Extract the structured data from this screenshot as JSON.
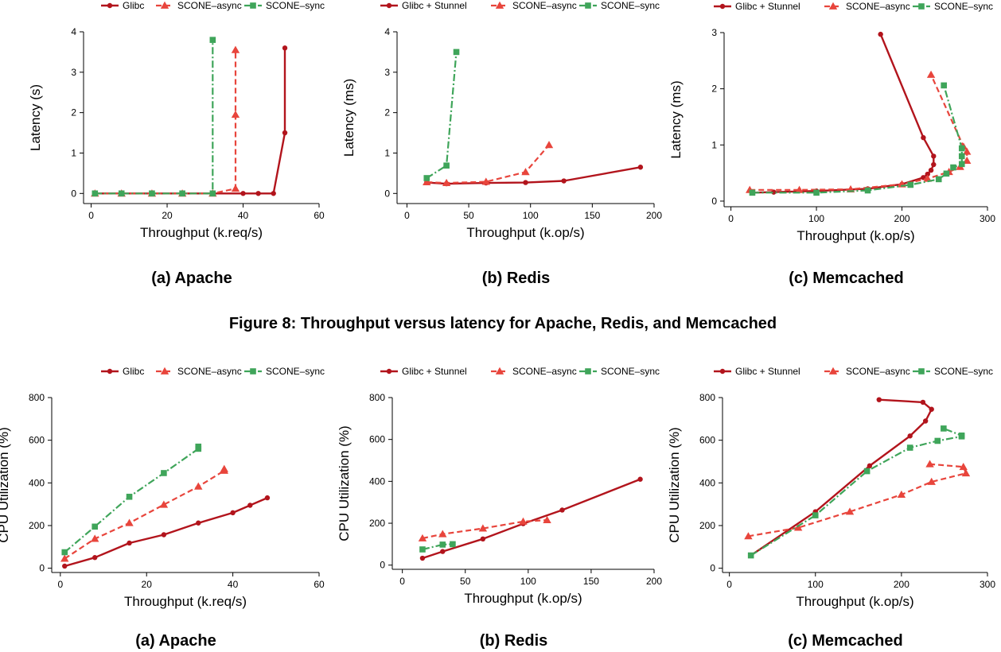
{
  "colors": {
    "glibc": "#b2141c",
    "async": "#e8453c",
    "sync": "#3fa55a",
    "axis": "#000000"
  },
  "figure_caption": "Figure 8: Throughput versus latency for Apache, Redis, and Memcached",
  "chart_data": [
    {
      "type": "line",
      "subcaption": "(a) Apache",
      "xlabel": "Throughput (k.req/s)",
      "ylabel": "Latency (s)",
      "xlim": [
        -2,
        60
      ],
      "ylim": [
        -0.25,
        4.0
      ],
      "xticks": [
        0,
        20,
        40,
        60
      ],
      "yticks": [
        0,
        1,
        2,
        3,
        4
      ],
      "series": [
        {
          "name": "Glibc",
          "style": "glibc",
          "x": [
            1,
            8,
            16,
            24,
            32,
            40,
            44,
            48,
            51,
            51
          ],
          "y": [
            0,
            0,
            0,
            0,
            0,
            0,
            0,
            0,
            1.5,
            3.6
          ]
        },
        {
          "name": "SCONE–async",
          "style": "async",
          "x": [
            1,
            8,
            16,
            24,
            32,
            38,
            38,
            38
          ],
          "y": [
            0,
            0,
            0,
            0,
            0,
            0.12,
            1.95,
            3.55
          ]
        },
        {
          "name": "SCONE–sync",
          "style": "sync",
          "x": [
            1,
            8,
            16,
            24,
            32,
            32
          ],
          "y": [
            0,
            0,
            0,
            0,
            0,
            3.8
          ]
        }
      ]
    },
    {
      "type": "line",
      "subcaption": "(b) Redis",
      "xlabel": "Throughput (k.op/s)",
      "ylabel": "Latency (ms)",
      "xlim": [
        -8,
        200
      ],
      "ylim": [
        -0.25,
        4.0
      ],
      "xticks": [
        0,
        50,
        100,
        150,
        200
      ],
      "yticks": [
        0,
        1,
        2,
        3,
        4
      ],
      "series": [
        {
          "name": "Glibc + Stunnel",
          "style": "glibc",
          "x": [
            16,
            32,
            64,
            96,
            127,
            189
          ],
          "y": [
            0.27,
            0.24,
            0.26,
            0.27,
            0.31,
            0.65
          ]
        },
        {
          "name": "SCONE–async",
          "style": "async",
          "x": [
            16,
            32,
            64,
            96,
            115
          ],
          "y": [
            0.28,
            0.26,
            0.29,
            0.53,
            1.2
          ]
        },
        {
          "name": "SCONE–sync",
          "style": "sync",
          "x": [
            16,
            32,
            40
          ],
          "y": [
            0.38,
            0.69,
            3.5
          ]
        }
      ]
    },
    {
      "type": "line",
      "subcaption": "(c) Memcached",
      "xlabel": "Throughput (k.op/s)",
      "ylabel": "Latency (ms)",
      "xlim": [
        -8,
        300
      ],
      "ylim": [
        -0.1,
        3.0
      ],
      "xticks": [
        0,
        100,
        200,
        300
      ],
      "yticks": [
        0,
        1,
        2,
        3
      ],
      "series": [
        {
          "name": "Glibc + Stunnel",
          "style": "glibc",
          "x": [
            175,
            225,
            237,
            237,
            234,
            230,
            225,
            200,
            160,
            100,
            50,
            25
          ],
          "y": [
            2.97,
            1.13,
            0.8,
            0.65,
            0.55,
            0.48,
            0.42,
            0.3,
            0.22,
            0.18,
            0.16,
            0.15
          ]
        },
        {
          "name": "SCONE–async",
          "style": "async",
          "x": [
            22,
            80,
            140,
            200,
            230,
            255,
            268,
            276,
            276,
            272,
            234
          ],
          "y": [
            0.2,
            0.2,
            0.21,
            0.3,
            0.4,
            0.52,
            0.61,
            0.72,
            0.88,
            0.97,
            2.25
          ]
        },
        {
          "name": "SCONE–sync",
          "style": "sync",
          "x": [
            25,
            100,
            160,
            210,
            243,
            252,
            260,
            270,
            270,
            270,
            249
          ],
          "y": [
            0.15,
            0.15,
            0.19,
            0.29,
            0.39,
            0.49,
            0.6,
            0.66,
            0.8,
            0.94,
            2.06
          ]
        }
      ]
    },
    {
      "type": "line",
      "subcaption": "(a) Apache",
      "xlabel": "Throughput (k.req/s)",
      "ylabel": "CPU Utilization (%)",
      "xlim": [
        -2,
        60
      ],
      "ylim": [
        -20,
        800
      ],
      "xticks": [
        0,
        20,
        40,
        60
      ],
      "yticks": [
        0,
        200,
        400,
        600,
        800
      ],
      "series": [
        {
          "name": "Glibc",
          "style": "glibc",
          "x": [
            1,
            8,
            16,
            24,
            32,
            40,
            44,
            48
          ],
          "y": [
            10,
            50,
            118,
            157,
            212,
            260,
            295,
            330
          ]
        },
        {
          "name": "SCONE–async",
          "style": "async",
          "x": [
            1,
            8,
            16,
            24,
            32,
            38,
            38
          ],
          "y": [
            45,
            138,
            212,
            298,
            383,
            457,
            465
          ]
        },
        {
          "name": "SCONE–sync",
          "style": "sync",
          "x": [
            1,
            8,
            16,
            24,
            32,
            32
          ],
          "y": [
            75,
            195,
            335,
            446,
            560,
            570
          ]
        }
      ]
    },
    {
      "type": "line",
      "subcaption": "(b) Redis",
      "xlabel": "Throughput (k.op/s)",
      "ylabel": "CPU Utilization (%)",
      "xlim": [
        -8,
        200
      ],
      "ylim": [
        -20,
        800
      ],
      "xticks": [
        0,
        50,
        100,
        150,
        200
      ],
      "yticks": [
        0,
        200,
        400,
        600,
        800
      ],
      "series": [
        {
          "name": "Glibc + Stunnel",
          "style": "glibc",
          "x": [
            16,
            32,
            64,
            96,
            127,
            189
          ],
          "y": [
            33,
            65,
            125,
            198,
            263,
            410
          ]
        },
        {
          "name": "SCONE–async",
          "style": "async",
          "x": [
            16,
            32,
            64,
            96,
            115
          ],
          "y": [
            128,
            148,
            175,
            208,
            215
          ]
        },
        {
          "name": "SCONE–sync",
          "style": "sync",
          "x": [
            16,
            32,
            40
          ],
          "y": [
            75,
            98,
            100
          ]
        }
      ]
    },
    {
      "type": "line",
      "subcaption": "(c) Memcached",
      "xlabel": "Throughput (k.op/s)",
      "ylabel": "CPU Utilization (%)",
      "xlim": [
        -8,
        300
      ],
      "ylim": [
        -20,
        800
      ],
      "xticks": [
        0,
        100,
        200,
        300
      ],
      "yticks": [
        0,
        200,
        400,
        600,
        800
      ],
      "series": [
        {
          "name": "Glibc + Stunnel",
          "style": "glibc",
          "x": [
            25,
            100,
            163,
            210,
            228,
            235,
            225,
            174
          ],
          "y": [
            60,
            265,
            480,
            620,
            690,
            745,
            778,
            790
          ]
        },
        {
          "name": "SCONE–async",
          "style": "async",
          "x": [
            22,
            80,
            140,
            200,
            235,
            275,
            272,
            233
          ],
          "y": [
            150,
            190,
            265,
            345,
            405,
            445,
            475,
            488
          ]
        },
        {
          "name": "SCONE–sync",
          "style": "sync",
          "x": [
            25,
            100,
            160,
            210,
            242,
            270,
            270,
            249
          ],
          "y": [
            60,
            248,
            455,
            565,
            597,
            618,
            622,
            655
          ]
        }
      ]
    }
  ]
}
